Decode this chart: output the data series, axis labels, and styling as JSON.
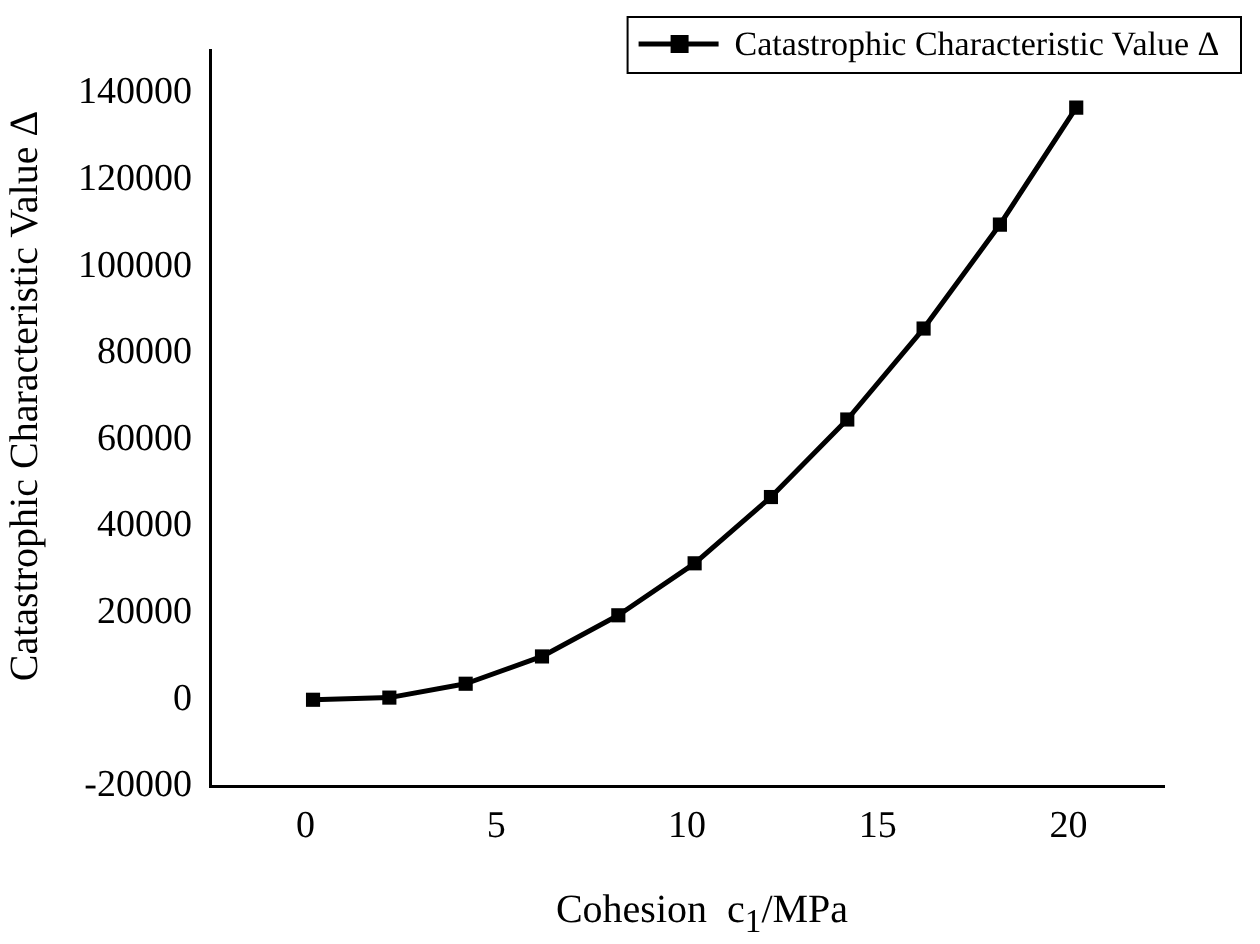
{
  "chart_data": {
    "type": "line",
    "xlabel": "Cohesion  c$_{1}$/MPa",
    "ylabel": "Catastrophic Characteristic Value Δ",
    "x": [
      0.2,
      2.2,
      4.2,
      6.2,
      8.2,
      10.2,
      12.2,
      14.2,
      16.2,
      18.2,
      20.2
    ],
    "series": [
      {
        "name": "Catastrophic Characteristic Value Δ",
        "color": "#000000",
        "values": [
          0,
          500,
          3700,
          10000,
          19500,
          31500,
          46800,
          64700,
          85700,
          109700,
          136700
        ]
      }
    ],
    "xlim": [
      -2.5,
      22.5
    ],
    "xticks": [
      0,
      5,
      10,
      15,
      20
    ],
    "ylim": [
      -20000,
      150000
    ],
    "yticks": [
      -20000,
      0,
      20000,
      40000,
      60000,
      80000,
      100000,
      120000,
      140000
    ],
    "marker": "square",
    "line_style": "solid",
    "legend": "top right",
    "grid": false
  }
}
